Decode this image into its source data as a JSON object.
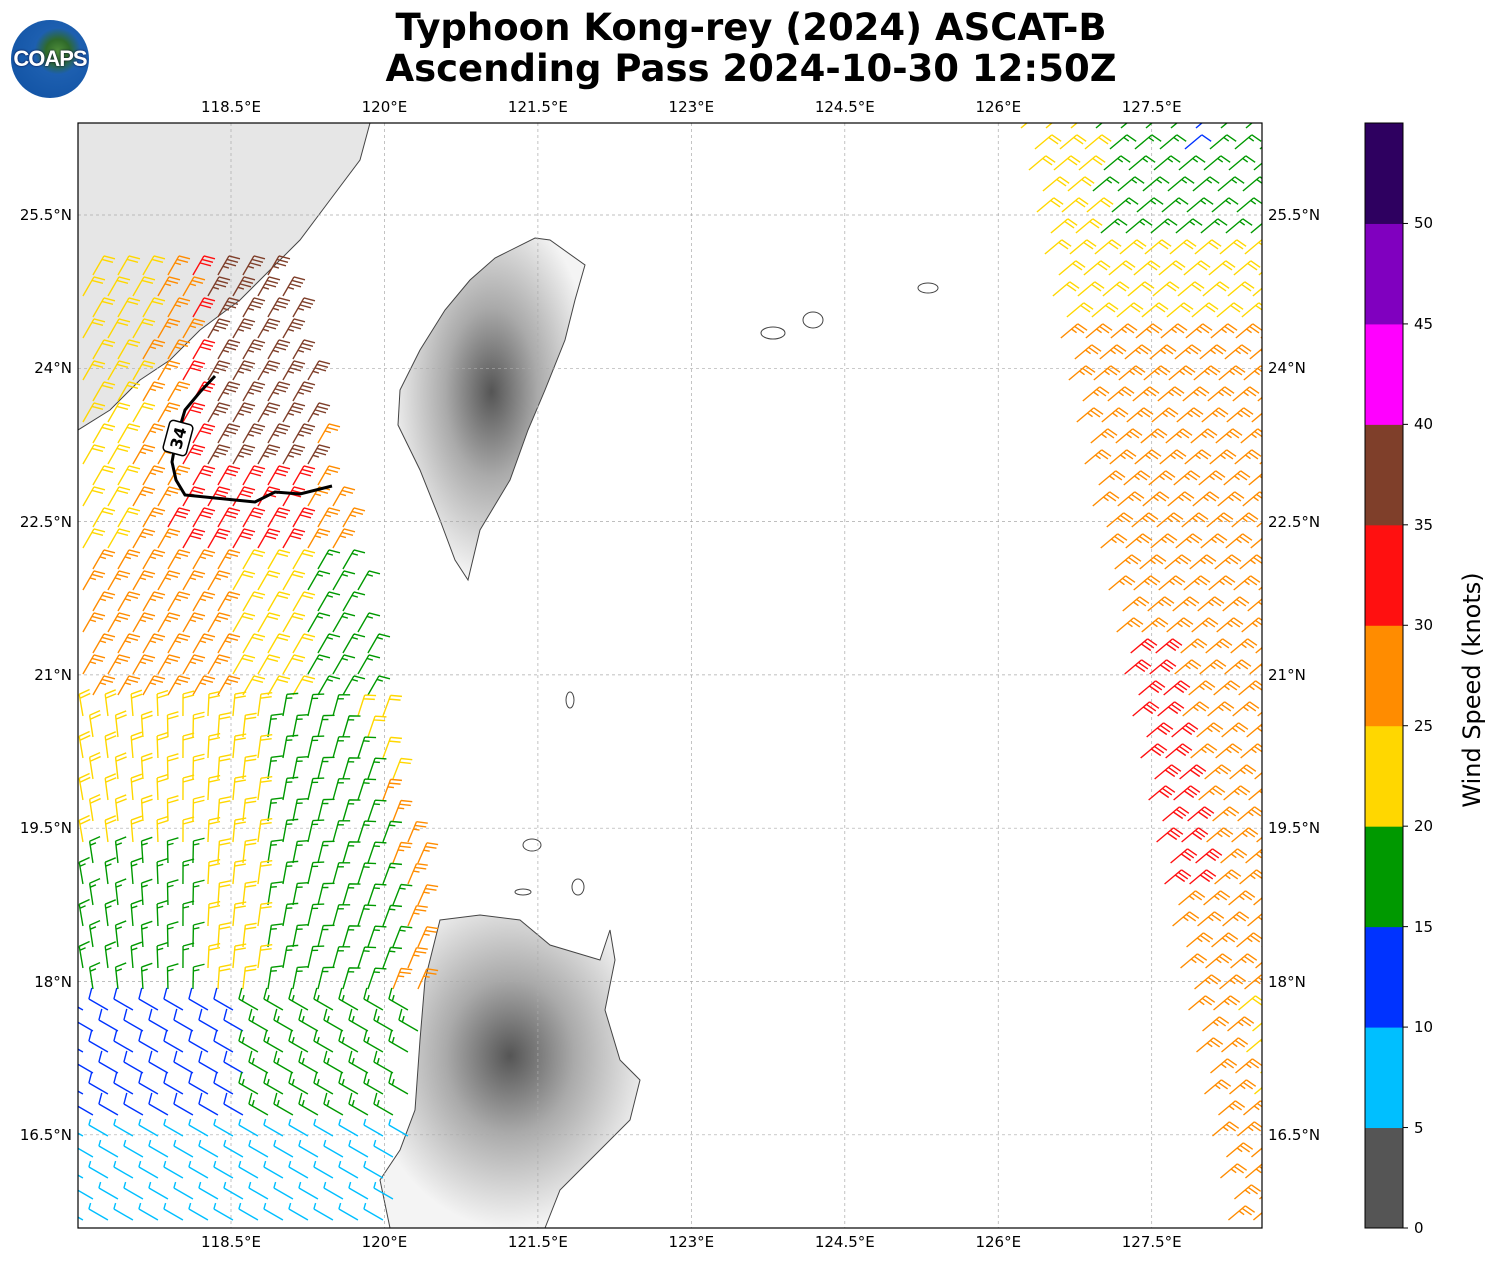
{
  "title_line1": "Typhoon Kong-rey (2024) ASCAT-B",
  "title_line2": "Ascending Pass 2024-10-30 12:50Z",
  "logo_text": "COAPS",
  "lon_ticks": [
    "118.5°E",
    "120°E",
    "121.5°E",
    "123°E",
    "124.5°E",
    "126°E",
    "127.5°E"
  ],
  "lon_values": [
    118.5,
    120,
    121.5,
    123,
    124.5,
    126,
    127.5
  ],
  "lat_ticks": [
    "25.5°N",
    "24°N",
    "22.5°N",
    "21°N",
    "19.5°N",
    "18°N",
    "16.5°N"
  ],
  "lat_values": [
    25.5,
    24,
    22.5,
    21,
    19.5,
    18,
    16.5
  ],
  "track_label": "34",
  "colorbar": {
    "label": "Wind Speed (knots)",
    "ticks": [
      "0",
      "5",
      "10",
      "15",
      "20",
      "25",
      "30",
      "35",
      "40",
      "45",
      "50"
    ],
    "colors": [
      "#555555",
      "#00bfff",
      "#0033ff",
      "#009900",
      "#ffd700",
      "#ff8c00",
      "#ff1010",
      "#7f3f2a",
      "#ff00ff",
      "#8000bf",
      "#2e0060"
    ]
  }
}
